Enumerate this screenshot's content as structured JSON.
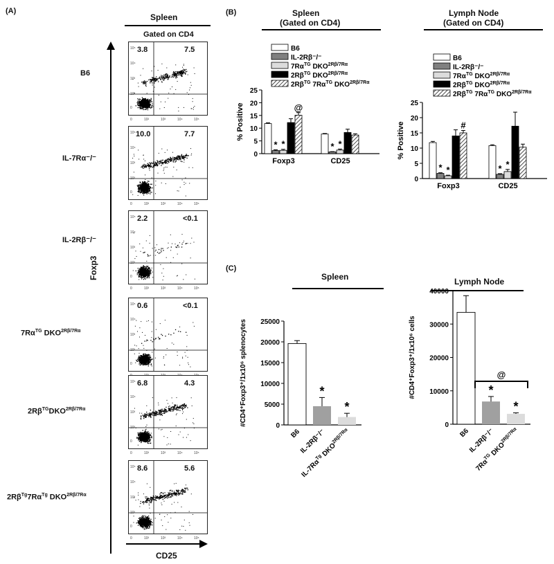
{
  "panel_labels": {
    "a": "(A)",
    "b": "(B)",
    "c": "(C)"
  },
  "panel_a": {
    "header": "Spleen",
    "subheader": "Gated on CD4",
    "y_axis": "Foxp3",
    "x_axis": "CD25",
    "ticks_y": [
      "10⁵",
      "10⁴",
      "10³",
      "10²",
      "0"
    ],
    "ticks_x": [
      "0",
      "10²",
      "10³",
      "10⁴",
      "10⁵"
    ],
    "plots": [
      {
        "label": "B6",
        "q_left": "3.8",
        "q_right": "7.5"
      },
      {
        "label": "IL-7Rα⁻/⁻",
        "q_left": "10.0",
        "q_right": "7.7"
      },
      {
        "label": "IL-2Rβ⁻/⁻",
        "q_left": "2.2",
        "q_right": "<0.1"
      },
      {
        "label": "7Rα^TG DKO^2Rβ/7Rα",
        "q_left": "0.6",
        "q_right": "<0.1"
      },
      {
        "label": "2Rβ^TG DKO^2Rβ/7Rα",
        "q_left": "6.8",
        "q_right": "4.3"
      },
      {
        "label": "2Rβ^Tg 7Rα^Tg DKO^2Rβ/7Rα",
        "q_left": "8.6",
        "q_right": "5.6"
      }
    ]
  },
  "panel_b": {
    "spleen_header": "Spleen",
    "spleen_sub": "(Gated on CD4)",
    "ln_header": "Lymph Node",
    "ln_sub": "(Gated on CD4)",
    "ylabel": "% Positive",
    "legend": [
      "B6",
      "IL-2Rβ⁻/⁻",
      "7Rα^TG DKO^2Rβ/7Rα",
      "2Rβ^TG DKO^2Rβ/7Rα",
      "2Rβ^TG 7Rα^TG DKO^2Rβ/7Rα"
    ]
  },
  "panel_c": {
    "spleen_header": "Spleen",
    "ln_header": "Lymph Node"
  },
  "chart_data": [
    {
      "type": "bar",
      "title": "Spleen (Gated on CD4)",
      "ylabel": "% Positive",
      "categories": [
        "Foxp3",
        "CD25"
      ],
      "ylim": [
        0,
        25
      ],
      "yticks": [
        0,
        5,
        10,
        15,
        20,
        25
      ],
      "series": [
        {
          "name": "B6",
          "values": [
            11.8,
            7.7
          ],
          "errors": [
            0.3,
            0.2
          ],
          "color": "#ffffff",
          "marks": [
            "",
            ""
          ]
        },
        {
          "name": "IL-2Rβ⁻/⁻",
          "values": [
            1.2,
            0.7
          ],
          "errors": [
            0.3,
            0.1
          ],
          "color": "#808080",
          "marks": [
            "*",
            "*"
          ]
        },
        {
          "name": "7Rα^TG DKO^2Rβ/7Rα",
          "values": [
            1.3,
            1.4
          ],
          "errors": [
            0.4,
            0.4
          ],
          "color": "#dcdcdc",
          "marks": [
            "*",
            "*"
          ]
        },
        {
          "name": "2Rβ^TG DKO^2Rβ/7Rα",
          "values": [
            12.2,
            8.3
          ],
          "errors": [
            1.5,
            1.3
          ],
          "color": "#000000",
          "marks": [
            "",
            ""
          ]
        },
        {
          "name": "2Rβ^TG 7Rα^TG DKO^2Rβ/7Rα",
          "values": [
            15.1,
            7.3
          ],
          "errors": [
            1.0,
            0.5
          ],
          "color": "hatch",
          "marks": [
            "@",
            ""
          ]
        }
      ]
    },
    {
      "type": "bar",
      "title": "Lymph Node (Gated on CD4)",
      "ylabel": "% Positive",
      "categories": [
        "Foxp3",
        "CD25"
      ],
      "ylim": [
        0,
        25
      ],
      "yticks": [
        0,
        5,
        10,
        15,
        20,
        25
      ],
      "series": [
        {
          "name": "B6",
          "values": [
            11.8,
            10.8
          ],
          "errors": [
            0.4,
            0.3
          ],
          "color": "#ffffff",
          "marks": [
            "",
            ""
          ]
        },
        {
          "name": "IL-2Rβ⁻/⁻",
          "values": [
            1.7,
            1.4
          ],
          "errors": [
            0.2,
            0.2
          ],
          "color": "#808080",
          "marks": [
            "*",
            "*"
          ]
        },
        {
          "name": "7Rα^TG DKO^2Rβ/7Rα",
          "values": [
            0.9,
            2.3
          ],
          "errors": [
            0.2,
            0.7
          ],
          "color": "#dcdcdc",
          "marks": [
            "*",
            "*"
          ]
        },
        {
          "name": "2Rβ^TG DKO^2Rβ/7Rα",
          "values": [
            14.0,
            17.2
          ],
          "errors": [
            2.0,
            4.6
          ],
          "color": "#000000",
          "marks": [
            "",
            ""
          ]
        },
        {
          "name": "2Rβ^TG 7Rα^TG DKO^2Rβ/7Rα",
          "values": [
            15.0,
            10.3
          ],
          "errors": [
            0.8,
            1.0
          ],
          "color": "hatch",
          "marks": [
            "#",
            ""
          ]
        }
      ]
    },
    {
      "type": "bar",
      "title": "Spleen",
      "ylabel": "#CD4⁺Foxp3⁺/1x10⁶ splenocytes",
      "categories": [
        "B6",
        "IL-2Rβ⁻/⁻",
        "IL-7Rα^Tg DKO^2Rβ/7Rα"
      ],
      "values": [
        19600,
        4500,
        1900
      ],
      "errors": [
        700,
        2100,
        900
      ],
      "colors": [
        "#ffffff",
        "#a0a0a0",
        "#dcdcdc"
      ],
      "marks": [
        "",
        "*",
        "*"
      ],
      "ylim": [
        0,
        25000
      ],
      "yticks": [
        0,
        5000,
        10000,
        15000,
        20000,
        25000
      ]
    },
    {
      "type": "bar",
      "title": "Lymph Node",
      "ylabel": "#CD4⁺Foxp3⁺/1x10⁶ cells",
      "categories": [
        "B6",
        "IL-2Rβ⁻/⁻",
        "7Rα^TG DKO^2Rβ/7Rα"
      ],
      "values": [
        33500,
        6800,
        3100
      ],
      "errors": [
        5000,
        1500,
        300
      ],
      "colors": [
        "#ffffff",
        "#a0a0a0",
        "#dcdcdc"
      ],
      "marks": [
        "",
        "*",
        "*"
      ],
      "bracket": "@",
      "ylim": [
        0,
        40000
      ],
      "yticks": [
        0,
        10000,
        20000,
        30000,
        40000
      ]
    }
  ]
}
